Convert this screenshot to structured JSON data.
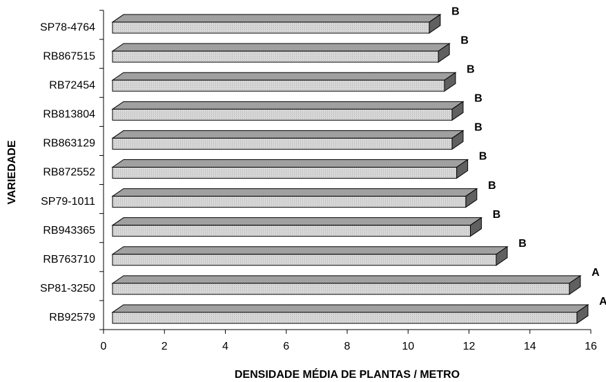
{
  "chart_data": {
    "type": "bar3d",
    "orientation": "horizontal",
    "xlabel": "DENSIDADE MÉDIA DE PLANTAS / METRO",
    "ylabel": "VARIEDADE",
    "categories": [
      "SP78-4764",
      "RB867515",
      "RB72454",
      "RB813804",
      "RB863129",
      "RB872552",
      "SP79-1011",
      "RB943365",
      "RB763710",
      "SP81-3250",
      "RB92579"
    ],
    "values": [
      10.4,
      10.7,
      10.9,
      11.15,
      11.15,
      11.3,
      11.6,
      11.75,
      12.6,
      15.0,
      15.25
    ],
    "letters": [
      "B",
      "B",
      "B",
      "B",
      "B",
      "B",
      "B",
      "B",
      "B",
      "A",
      "A"
    ],
    "color": "#d4d4d4",
    "xlim": [
      0,
      16
    ],
    "xticks": [
      0,
      2,
      4,
      6,
      8,
      10,
      12,
      14,
      16
    ]
  }
}
